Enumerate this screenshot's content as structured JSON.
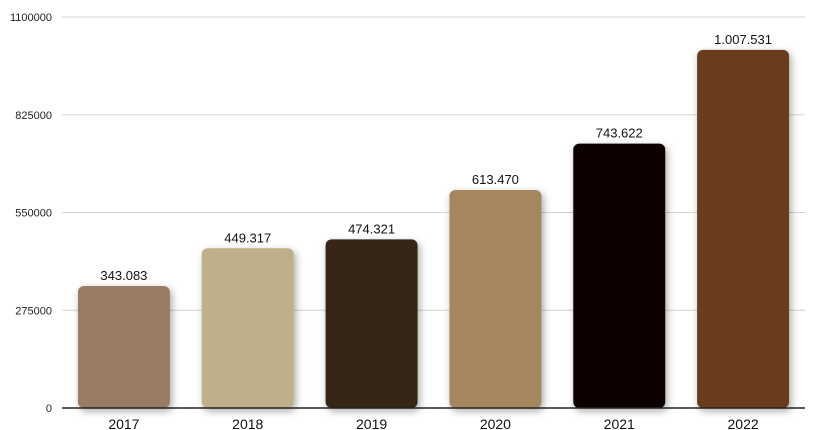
{
  "chart_data": {
    "type": "bar",
    "title": "",
    "xlabel": "",
    "ylabel": "",
    "categories": [
      "2017",
      "2018",
      "2019",
      "2020",
      "2021",
      "2022"
    ],
    "values": [
      343083,
      449317,
      474321,
      613470,
      743622,
      1007531
    ],
    "data_labels": [
      "343.083",
      "449.317",
      "474.321",
      "613.470",
      "743.622",
      "1.007.531"
    ],
    "bar_colors": [
      "#9a7b66",
      "#bfb08a",
      "#352518",
      "#a5865f",
      "#0f0606",
      "#6b3b1c"
    ],
    "ylim": [
      0,
      1100000
    ],
    "yticks": [
      0,
      275000,
      550000,
      825000,
      1100000
    ],
    "ytick_labels": [
      "0",
      "275000",
      "550000",
      "825000",
      "1100000"
    ],
    "grid": true,
    "legend": "none"
  }
}
